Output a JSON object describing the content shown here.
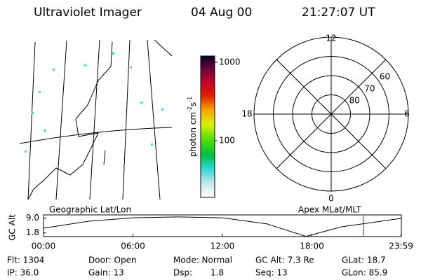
{
  "header": {
    "title": "Ultraviolet Imager",
    "date": "04 Aug 00",
    "time": "21:27:07 UT"
  },
  "colorbar": {
    "label": "photon cm",
    "label_exp1": "-2",
    "label_mid": "s",
    "label_exp2": "-1",
    "scale": "log",
    "clim": [
      19,
      1200
    ],
    "ticks": [
      1000,
      100
    ]
  },
  "polar": {
    "outer_lat": 50,
    "lat_rings": [
      60,
      70,
      80
    ],
    "mlt_labels": {
      "top": "12",
      "left": "18",
      "bottom": "0",
      "right": "6"
    }
  },
  "panel_labels": {
    "left": "Geographic Lat/Lon",
    "right": "Apex MLat/MLT"
  },
  "altitude": {
    "ylabel": "GC Alt",
    "xlim": [
      0,
      24
    ],
    "ylim": [
      0,
      10.6
    ],
    "yticks": [
      {
        "value": 9,
        "label": "9.0"
      },
      {
        "value": 1.8,
        "label": "1.8"
      }
    ],
    "xticks": [
      {
        "value": 0,
        "label": "00:00"
      },
      {
        "value": 6,
        "label": "06:00"
      },
      {
        "value": 12,
        "label": "12:00"
      },
      {
        "value": 18,
        "label": "18:00"
      },
      {
        "value": 23.98,
        "label": "23:59"
      }
    ],
    "x": [
      0,
      3,
      6,
      9,
      12,
      15,
      17.6,
      20,
      23.98
    ],
    "values": [
      4.1,
      7.5,
      9.2,
      9.6,
      9.2,
      6.2,
      0.1,
      4.8,
      8.9
    ],
    "marker": 21.45,
    "marker_color": "#cc0000"
  },
  "status": {
    "row1": [
      "Flt: 1304",
      "Door: Open",
      "Mode: Normal",
      "GC Alt: 7.3 Re",
      "GLat: 18.7"
    ],
    "row2": [
      "IP: 36.0",
      "Gain: 13",
      "Dsp:",
      "1.8",
      "Seq: 13",
      "GLon: 85.9"
    ]
  }
}
